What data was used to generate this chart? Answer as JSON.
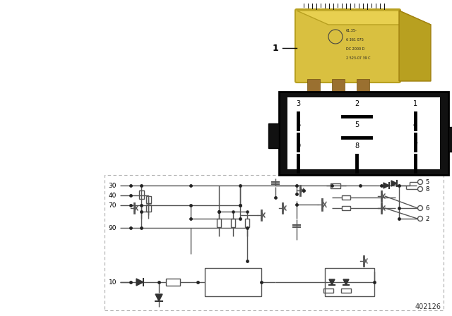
{
  "background_color": "#ffffff",
  "image_number": "402126",
  "fig_w": 6.4,
  "fig_h": 4.48,
  "dpi": 100
}
